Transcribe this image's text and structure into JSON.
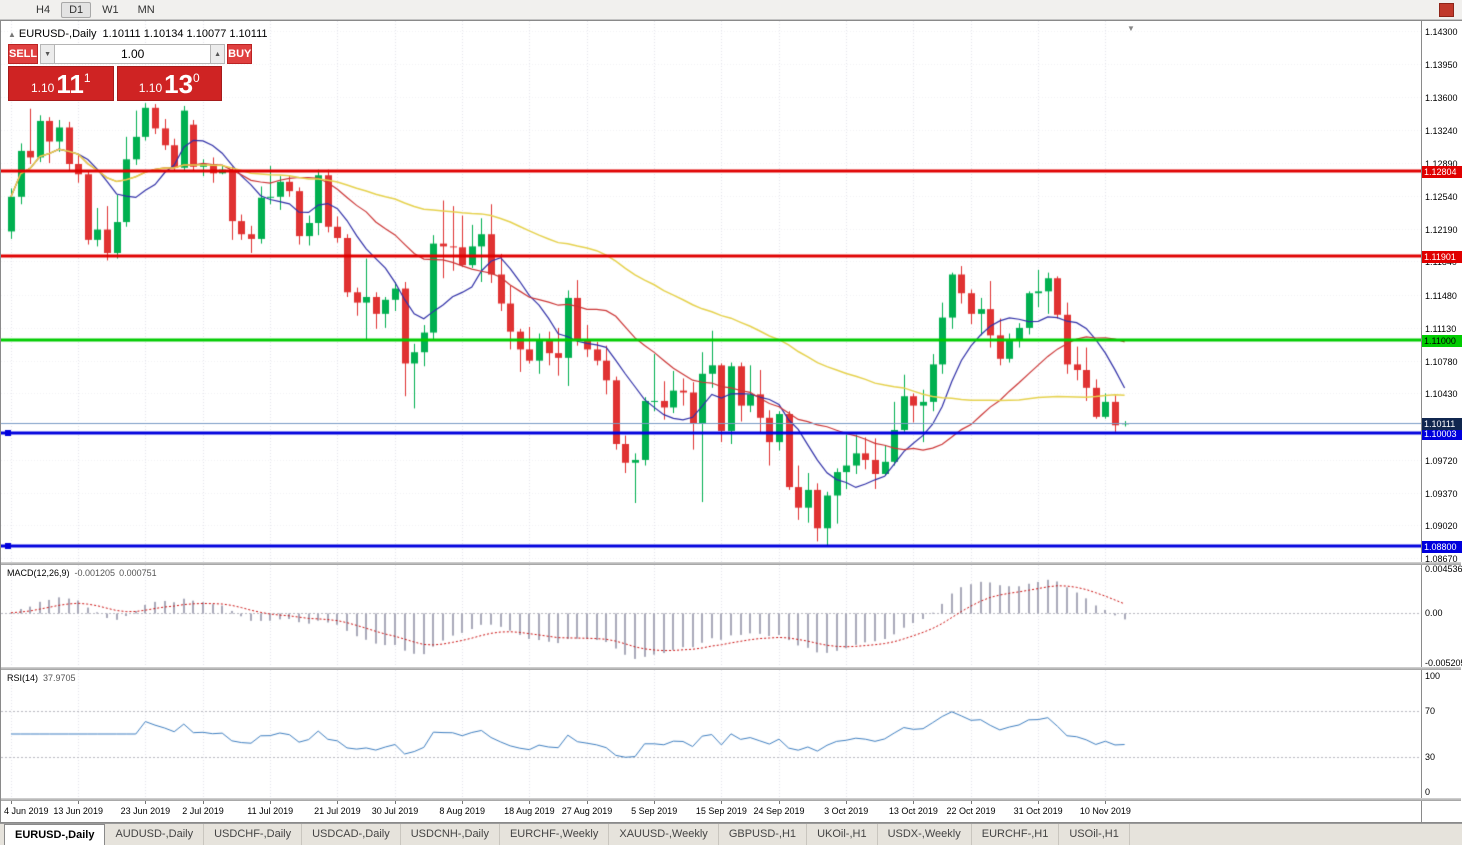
{
  "toolbar": {
    "timeframes": [
      "H4",
      "D1",
      "W1",
      "MN"
    ],
    "active": "D1"
  },
  "chart_header": {
    "symbol_label": "EURUSD-,Daily",
    "ohlc": "1.10111 1.10134 1.10077 1.10111"
  },
  "icons": {
    "collapse": "▲",
    "shift_marker": "▼",
    "vol_up": "▲",
    "vol_down": "▼"
  },
  "trade_panel": {
    "sell_label": "SELL",
    "buy_label": "BUY",
    "volume_value": "1.00",
    "sell_price": {
      "prefix": "1.10",
      "big": "11",
      "sup": "1"
    },
    "buy_price": {
      "prefix": "1.10",
      "big": "13",
      "sup": "0"
    }
  },
  "macd_panel": {
    "label": "MACD(12,26,9)",
    "value_main": "-0.001205",
    "value_signal": "0.000751",
    "axis": [
      {
        "label": "0.004536",
        "value": 0.004536
      },
      {
        "label": "0.00",
        "value": 0
      },
      {
        "label": "-0.005205",
        "value": -0.005205
      }
    ]
  },
  "rsi_panel": {
    "label": "RSI(14)",
    "value": "37.9705",
    "axis": [
      {
        "label": "100",
        "value": 100
      },
      {
        "label": "70",
        "value": 70
      },
      {
        "label": "30",
        "value": 30
      },
      {
        "label": "0",
        "value": 0
      }
    ]
  },
  "tabs": {
    "active_index": 0,
    "items": [
      "EURUSD-,Daily",
      "AUDUSD-,Daily",
      "USDCHF-,Daily",
      "USDCAD-,Daily",
      "USDCNH-,Daily",
      "EURCHF-,Weekly",
      "XAUUSD-,Weekly",
      "GBPUSD-,H1",
      "UKOil-,H1",
      "USDX-,Weekly",
      "EURCHF-,H1",
      "USOil-,H1"
    ]
  },
  "chart_data": {
    "type": "candlestick",
    "symbol": "EURUSD-",
    "timeframe": "Daily",
    "title": "EURUSD-,Daily 1.10111 1.10134 1.10077 1.10111",
    "price_range": {
      "min": 1.0863,
      "max": 1.14407
    },
    "price_axis_labels": [
      "1.14300",
      "1.13950",
      "1.13600",
      "1.13240",
      "1.12890",
      "1.12540",
      "1.12190",
      "1.11840",
      "1.11480",
      "1.11130",
      "1.10780",
      "1.10430",
      "1.09720",
      "1.09370",
      "1.09020",
      "1.08670"
    ],
    "time_axis": [
      {
        "label": "4 Jun 2019",
        "i": 0
      },
      {
        "label": "13 Jun 2019",
        "i": 7
      },
      {
        "label": "23 Jun 2019",
        "i": 14
      },
      {
        "label": "2 Jul 2019",
        "i": 20
      },
      {
        "label": "11 Jul 2019",
        "i": 27
      },
      {
        "label": "21 Jul 2019",
        "i": 34
      },
      {
        "label": "30 Jul 2019",
        "i": 40
      },
      {
        "label": "8 Aug 2019",
        "i": 47
      },
      {
        "label": "18 Aug 2019",
        "i": 54
      },
      {
        "label": "27 Aug 2019",
        "i": 60
      },
      {
        "label": "5 Sep 2019",
        "i": 67
      },
      {
        "label": "15 Sep 2019",
        "i": 74
      },
      {
        "label": "24 Sep 2019",
        "i": 80
      },
      {
        "label": "3 Oct 2019",
        "i": 87
      },
      {
        "label": "13 Oct 2019",
        "i": 94
      },
      {
        "label": "22 Oct 2019",
        "i": 100
      },
      {
        "label": "31 Oct 2019",
        "i": 107
      },
      {
        "label": "10 Nov 2019",
        "i": 114
      }
    ],
    "hlines": [
      {
        "price": 1.12804,
        "label": "1.12804",
        "color": "#e00000",
        "width": 3,
        "text": "#ffffff",
        "handles": false
      },
      {
        "price": 1.11901,
        "label": "1.11901",
        "color": "#e00000",
        "width": 3,
        "text": "#ffffff",
        "handles": false
      },
      {
        "price": 1.11,
        "label": "1.11000",
        "color": "#00cc00",
        "width": 3,
        "text": "#000000",
        "handles": false
      },
      {
        "price": 1.10003,
        "label": "1.10003",
        "color": "#0000dd",
        "width": 3,
        "text": "#ffffff",
        "handles": true
      },
      {
        "price": 1.088,
        "label": "1.08800",
        "color": "#0000dd",
        "width": 3,
        "text": "#ffffff",
        "handles": true
      }
    ],
    "current_price": {
      "value": 1.10111,
      "label": "1.10111",
      "line_color": "#7a9cc6",
      "tag_bg": "#10264f"
    },
    "ma": [
      {
        "period": 8,
        "color": "#3030a8",
        "width": 1.2
      },
      {
        "period": 20,
        "color": "#cc3535",
        "width": 1.2
      },
      {
        "period": 50,
        "color": "#e6d24e",
        "width": 1.5
      }
    ],
    "macd": {
      "fast": 12,
      "slow": 26,
      "signal": 9,
      "range": {
        "min": -0.005205,
        "max": 0.004536
      }
    },
    "rsi": {
      "period": 14,
      "levels": [
        70,
        30
      ],
      "range": {
        "min": 0,
        "max": 100
      }
    },
    "colors": {
      "bull": "#00b050",
      "bear": "#e03232",
      "grid": "#e4e4ea",
      "hgrid": "#f2f2f5",
      "macd_hist": "#a9aaba",
      "macd_signal": "#cc1111",
      "rsi_line": "#3f7fc1",
      "level_dash": "#b8b8c0"
    },
    "candles": [
      [
        1.1216,
        1.1262,
        1.1208,
        1.1253
      ],
      [
        1.1253,
        1.131,
        1.1245,
        1.1302
      ],
      [
        1.1302,
        1.1347,
        1.1288,
        1.1295
      ],
      [
        1.1295,
        1.134,
        1.129,
        1.1334
      ],
      [
        1.1334,
        1.1338,
        1.1289,
        1.1312
      ],
      [
        1.1312,
        1.1335,
        1.1301,
        1.1327
      ],
      [
        1.1327,
        1.1333,
        1.1281,
        1.1288
      ],
      [
        1.1288,
        1.1298,
        1.1268,
        1.1277
      ],
      [
        1.1277,
        1.128,
        1.1202,
        1.1207
      ],
      [
        1.1207,
        1.1241,
        1.12,
        1.1218
      ],
      [
        1.1218,
        1.1243,
        1.1185,
        1.1193
      ],
      [
        1.1193,
        1.1255,
        1.1187,
        1.1226
      ],
      [
        1.1226,
        1.1317,
        1.1221,
        1.1293
      ],
      [
        1.1293,
        1.1345,
        1.1287,
        1.1317
      ],
      [
        1.1317,
        1.1353,
        1.1313,
        1.1348
      ],
      [
        1.1348,
        1.1352,
        1.132,
        1.1326
      ],
      [
        1.1326,
        1.1336,
        1.1303,
        1.1308
      ],
      [
        1.1308,
        1.1315,
        1.128,
        1.1284
      ],
      [
        1.1284,
        1.135,
        1.128,
        1.1345
      ],
      [
        1.133,
        1.1335,
        1.1281,
        1.1285
      ],
      [
        1.1285,
        1.1293,
        1.1275,
        1.1288
      ],
      [
        1.1288,
        1.1295,
        1.1268,
        1.1278
      ],
      [
        1.1278,
        1.1287,
        1.1277,
        1.1282
      ],
      [
        1.1282,
        1.1285,
        1.1207,
        1.1227
      ],
      [
        1.1227,
        1.1234,
        1.1207,
        1.1213
      ],
      [
        1.1213,
        1.1222,
        1.1193,
        1.1208
      ],
      [
        1.1208,
        1.1264,
        1.1203,
        1.1252
      ],
      [
        1.1252,
        1.1286,
        1.1245,
        1.1253
      ],
      [
        1.1253,
        1.1275,
        1.1239,
        1.1269
      ],
      [
        1.1269,
        1.1276,
        1.1253,
        1.1259
      ],
      [
        1.1259,
        1.1263,
        1.1202,
        1.1211
      ],
      [
        1.1211,
        1.1233,
        1.1201,
        1.1225
      ],
      [
        1.1225,
        1.1282,
        1.1212,
        1.1276
      ],
      [
        1.1276,
        1.1282,
        1.1215,
        1.1221
      ],
      [
        1.1221,
        1.1232,
        1.1204,
        1.1209
      ],
      [
        1.1209,
        1.1213,
        1.1146,
        1.1151
      ],
      [
        1.1151,
        1.1156,
        1.1126,
        1.114
      ],
      [
        1.114,
        1.1187,
        1.1101,
        1.1146
      ],
      [
        1.1146,
        1.1151,
        1.1112,
        1.1128
      ],
      [
        1.1128,
        1.1146,
        1.1113,
        1.1143
      ],
      [
        1.1143,
        1.1162,
        1.1131,
        1.1155
      ],
      [
        1.1155,
        1.1162,
        1.104,
        1.1075
      ],
      [
        1.1075,
        1.1096,
        1.1027,
        1.1087
      ],
      [
        1.1087,
        1.1116,
        1.1072,
        1.1108
      ],
      [
        1.1108,
        1.1212,
        1.1101,
        1.1203
      ],
      [
        1.1203,
        1.1249,
        1.1166,
        1.12
      ],
      [
        1.12,
        1.1243,
        1.1174,
        1.1199
      ],
      [
        1.1199,
        1.1233,
        1.1178,
        1.118
      ],
      [
        1.118,
        1.1223,
        1.1177,
        1.12
      ],
      [
        1.12,
        1.123,
        1.1162,
        1.1213
      ],
      [
        1.1213,
        1.1245,
        1.1161,
        1.117
      ],
      [
        1.117,
        1.1192,
        1.1131,
        1.1139
      ],
      [
        1.1139,
        1.1158,
        1.109,
        1.1109
      ],
      [
        1.1109,
        1.1112,
        1.1066,
        1.109
      ],
      [
        1.109,
        1.1114,
        1.1075,
        1.1078
      ],
      [
        1.1078,
        1.1107,
        1.1064,
        1.11
      ],
      [
        1.11,
        1.1109,
        1.1073,
        1.1086
      ],
      [
        1.1086,
        1.1113,
        1.1062,
        1.1081
      ],
      [
        1.1081,
        1.1153,
        1.1051,
        1.1145
      ],
      [
        1.1145,
        1.1164,
        1.1094,
        1.1101
      ],
      [
        1.1101,
        1.1116,
        1.1082,
        1.109
      ],
      [
        1.109,
        1.1098,
        1.1073,
        1.1078
      ],
      [
        1.1078,
        1.1094,
        1.1042,
        1.1057
      ],
      [
        1.1057,
        1.1061,
        1.0983,
        1.0989
      ],
      [
        1.0989,
        1.0998,
        1.0958,
        1.0969
      ],
      [
        1.0969,
        1.0979,
        1.0926,
        1.0972
      ],
      [
        1.0972,
        1.1039,
        1.0966,
        1.1035
      ],
      [
        1.1035,
        1.1085,
        1.1024,
        1.1035
      ],
      [
        1.1035,
        1.1056,
        1.1015,
        1.1028
      ],
      [
        1.1028,
        1.1067,
        1.1022,
        1.1046
      ],
      [
        1.1046,
        1.1059,
        1.103,
        1.1044
      ],
      [
        1.1044,
        1.1055,
        1.0983,
        1.1011
      ],
      [
        1.1011,
        1.1087,
        1.0927,
        1.1064
      ],
      [
        1.1064,
        1.111,
        1.1049,
        1.1073
      ],
      [
        1.1073,
        1.1075,
        1.0991,
        1.1003
      ],
      [
        1.1003,
        1.1076,
        1.0989,
        1.1072
      ],
      [
        1.1072,
        1.1076,
        1.1013,
        1.103
      ],
      [
        1.103,
        1.1073,
        1.1023,
        1.1042
      ],
      [
        1.1042,
        1.1068,
        1.1,
        1.1017
      ],
      [
        1.1017,
        1.1025,
        1.0966,
        1.0991
      ],
      [
        1.0991,
        1.1024,
        1.0982,
        1.1021
      ],
      [
        1.1021,
        1.1024,
        1.094,
        1.0943
      ],
      [
        1.0943,
        1.0966,
        1.0908,
        1.0921
      ],
      [
        1.0921,
        1.0958,
        1.0905,
        1.094
      ],
      [
        1.094,
        1.0947,
        1.0885,
        1.0899
      ],
      [
        1.0899,
        1.0938,
        1.0879,
        1.0934
      ],
      [
        1.0934,
        1.0963,
        1.0904,
        1.0959
      ],
      [
        1.0959,
        1.0999,
        1.0941,
        1.0966
      ],
      [
        1.0966,
        1.0999,
        1.0957,
        1.0979
      ],
      [
        1.0979,
        1.0996,
        1.0962,
        1.0972
      ],
      [
        1.0972,
        1.0995,
        1.0941,
        1.0957
      ],
      [
        1.0957,
        1.0988,
        1.0955,
        1.097
      ],
      [
        1.097,
        1.1034,
        1.0966,
        1.1004
      ],
      [
        1.1004,
        1.1063,
        1.1002,
        1.104
      ],
      [
        1.104,
        1.1043,
        1.1012,
        1.103
      ],
      [
        1.103,
        1.1047,
        1.0991,
        1.1034
      ],
      [
        1.1034,
        1.1085,
        1.1024,
        1.1074
      ],
      [
        1.1074,
        1.114,
        1.1064,
        1.1124
      ],
      [
        1.1124,
        1.1172,
        1.1112,
        1.117
      ],
      [
        1.117,
        1.1179,
        1.1139,
        1.115
      ],
      [
        1.115,
        1.1154,
        1.1117,
        1.1128
      ],
      [
        1.1128,
        1.1145,
        1.1105,
        1.1133
      ],
      [
        1.1133,
        1.1163,
        1.1092,
        1.1105
      ],
      [
        1.1105,
        1.1123,
        1.1073,
        1.108
      ],
      [
        1.108,
        1.1107,
        1.1076,
        1.1099
      ],
      [
        1.1099,
        1.1118,
        1.1092,
        1.1113
      ],
      [
        1.1113,
        1.1152,
        1.1106,
        1.115
      ],
      [
        1.115,
        1.1175,
        1.1135,
        1.1152
      ],
      [
        1.1152,
        1.1172,
        1.1128,
        1.1166
      ],
      [
        1.1166,
        1.1168,
        1.1123,
        1.1127
      ],
      [
        1.1127,
        1.114,
        1.1064,
        1.1074
      ],
      [
        1.1074,
        1.1093,
        1.1057,
        1.1068
      ],
      [
        1.1068,
        1.1092,
        1.1035,
        1.1049
      ],
      [
        1.1049,
        1.1058,
        1.1016,
        1.1018
      ],
      [
        1.1018,
        1.1043,
        1.1016,
        1.1034
      ],
      [
        1.1034,
        1.1041,
        1.1002,
        1.1009
      ],
      [
        1.10111,
        1.10134,
        1.10077,
        1.10111
      ]
    ]
  }
}
